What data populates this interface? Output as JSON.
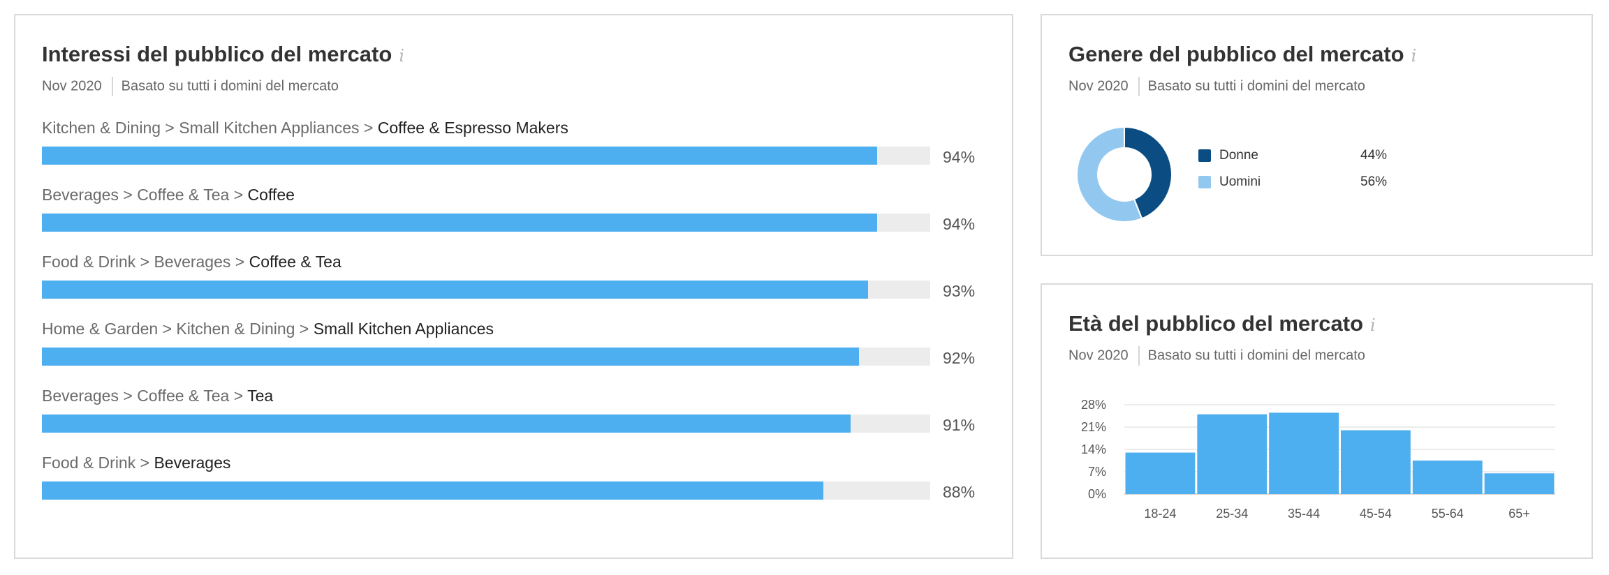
{
  "interests": {
    "title": "Interessi del pubblico del mercato",
    "info_icon": "i",
    "date": "Nov 2020",
    "basis": "Basato su tutti i domini del mercato",
    "rows": [
      {
        "path": [
          "Kitchen & Dining",
          "Small Kitchen Appliances"
        ],
        "leaf": "Coffee & Espresso Makers",
        "value": 94,
        "pct": "94%"
      },
      {
        "path": [
          "Beverages",
          "Coffee & Tea"
        ],
        "leaf": "Coffee",
        "value": 94,
        "pct": "94%"
      },
      {
        "path": [
          "Food & Drink",
          "Beverages"
        ],
        "leaf": "Coffee & Tea",
        "value": 93,
        "pct": "93%"
      },
      {
        "path": [
          "Home & Garden",
          "Kitchen & Dining"
        ],
        "leaf": "Small Kitchen Appliances",
        "value": 92,
        "pct": "92%"
      },
      {
        "path": [
          "Beverages",
          "Coffee & Tea"
        ],
        "leaf": "Tea",
        "value": 91,
        "pct": "91%"
      },
      {
        "path": [
          "Food & Drink"
        ],
        "leaf": "Beverages",
        "value": 88,
        "pct": "88%"
      }
    ]
  },
  "gender": {
    "title": "Genere del pubblico del mercato",
    "info_icon": "i",
    "date": "Nov 2020",
    "basis": "Basato su tutti i domini del mercato",
    "items": [
      {
        "label": "Donne",
        "pct": "44%",
        "color": "#0b4d83"
      },
      {
        "label": "Uomini",
        "pct": "56%",
        "color": "#92c8ef"
      }
    ]
  },
  "age": {
    "title": "Età del pubblico del mercato",
    "info_icon": "i",
    "date": "Nov 2020",
    "basis": "Basato su tutti i domini del mercato"
  },
  "colors": {
    "bar": "#4daef0",
    "track": "#ececec",
    "women": "#0b4d83",
    "men": "#92c8ef"
  },
  "chart_data": [
    {
      "type": "bar",
      "orientation": "horizontal",
      "categories": [
        "Kitchen & Dining > Small Kitchen Appliances > Coffee & Espresso Makers",
        "Beverages > Coffee & Tea > Coffee",
        "Food & Drink > Beverages > Coffee & Tea",
        "Home & Garden > Kitchen & Dining > Small Kitchen Appliances",
        "Beverages > Coffee & Tea > Tea",
        "Food & Drink > Beverages"
      ],
      "values": [
        94,
        94,
        93,
        92,
        91,
        88
      ],
      "xlim": [
        0,
        100
      ]
    },
    {
      "type": "pie",
      "donut": true,
      "categories": [
        "Donne",
        "Uomini"
      ],
      "values": [
        44,
        56
      ]
    },
    {
      "type": "bar",
      "categories": [
        "18-24",
        "25-34",
        "35-44",
        "45-54",
        "55-64",
        "65+"
      ],
      "values": [
        13,
        25,
        25.5,
        20,
        10.5,
        6.5
      ],
      "yticks": [
        "0%",
        "7%",
        "14%",
        "21%",
        "28%"
      ],
      "ylim": [
        0,
        28
      ],
      "grid": true
    }
  ]
}
